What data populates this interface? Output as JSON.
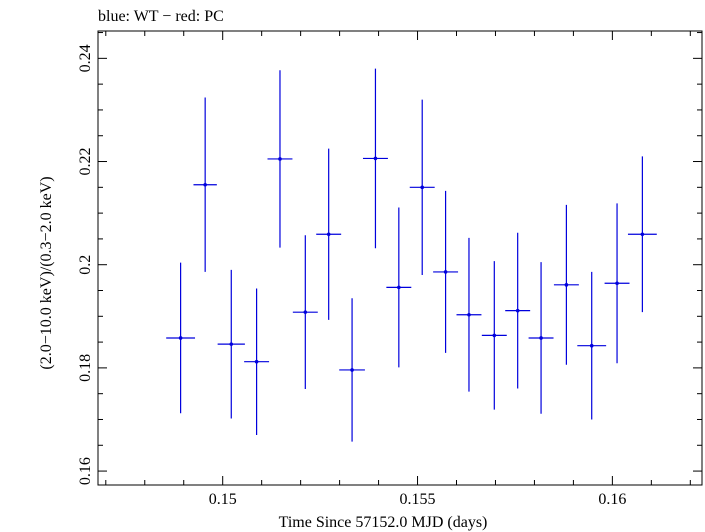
{
  "chart_data": {
    "type": "scatter",
    "title": "blue: WT − red: PC",
    "xlabel": "Time Since 57152.0 MJD (days)",
    "ylabel": "(2.0−10.0 keV)/(0.3−2.0 keV)",
    "xlim": [
      0.1468,
      0.1623
    ],
    "ylim": [
      0.1573,
      0.2453
    ],
    "xticks": [
      {
        "value": 0.15,
        "label": "0.15"
      },
      {
        "value": 0.155,
        "label": "0.155"
      },
      {
        "value": 0.16,
        "label": "0.16"
      }
    ],
    "yticks": [
      {
        "value": 0.16,
        "label": "0.16"
      },
      {
        "value": 0.18,
        "label": "0.18"
      },
      {
        "value": 0.2,
        "label": "0.2"
      },
      {
        "value": 0.22,
        "label": "0.22"
      },
      {
        "value": 0.24,
        "label": "0.24"
      }
    ],
    "x_minor_step": 0.001,
    "y_minor_step": 0.005,
    "grid": false,
    "color": "#0000dd",
    "series": [
      {
        "points": [
          {
            "x": 0.14892,
            "xerr": 0.00037,
            "y": 0.1858,
            "yerr_lo": 0.0146,
            "yerr_hi": 0.0146
          },
          {
            "x": 0.14955,
            "xerr": 0.0003,
            "y": 0.2155,
            "yerr_lo": 0.0169,
            "yerr_hi": 0.0169
          },
          {
            "x": 0.15022,
            "xerr": 0.00035,
            "y": 0.1846,
            "yerr_lo": 0.0144,
            "yerr_hi": 0.0144
          },
          {
            "x": 0.15087,
            "xerr": 0.00032,
            "y": 0.1812,
            "yerr_lo": 0.0142,
            "yerr_hi": 0.0142
          },
          {
            "x": 0.15147,
            "xerr": 0.00032,
            "y": 0.2205,
            "yerr_lo": 0.0172,
            "yerr_hi": 0.0172
          },
          {
            "x": 0.15212,
            "xerr": 0.00032,
            "y": 0.1908,
            "yerr_lo": 0.0149,
            "yerr_hi": 0.0149
          },
          {
            "x": 0.15272,
            "xerr": 0.00032,
            "y": 0.2059,
            "yerr_lo": 0.0166,
            "yerr_hi": 0.0166
          },
          {
            "x": 0.15332,
            "xerr": 0.00033,
            "y": 0.1796,
            "yerr_lo": 0.0139,
            "yerr_hi": 0.0139
          },
          {
            "x": 0.15392,
            "xerr": 0.00032,
            "y": 0.2206,
            "yerr_lo": 0.0174,
            "yerr_hi": 0.0174
          },
          {
            "x": 0.15452,
            "xerr": 0.00032,
            "y": 0.1956,
            "yerr_lo": 0.0155,
            "yerr_hi": 0.0155
          },
          {
            "x": 0.15512,
            "xerr": 0.00032,
            "y": 0.215,
            "yerr_lo": 0.017,
            "yerr_hi": 0.017
          },
          {
            "x": 0.15572,
            "xerr": 0.00032,
            "y": 0.1986,
            "yerr_lo": 0.0157,
            "yerr_hi": 0.0157
          },
          {
            "x": 0.15632,
            "xerr": 0.00032,
            "y": 0.1903,
            "yerr_lo": 0.0149,
            "yerr_hi": 0.0149
          },
          {
            "x": 0.15697,
            "xerr": 0.00032,
            "y": 0.1863,
            "yerr_lo": 0.0144,
            "yerr_hi": 0.0144
          },
          {
            "x": 0.15757,
            "xerr": 0.00032,
            "y": 0.1911,
            "yerr_lo": 0.0151,
            "yerr_hi": 0.0151
          },
          {
            "x": 0.15817,
            "xerr": 0.00032,
            "y": 0.1858,
            "yerr_lo": 0.0147,
            "yerr_hi": 0.0147
          },
          {
            "x": 0.15882,
            "xerr": 0.00032,
            "y": 0.1961,
            "yerr_lo": 0.0155,
            "yerr_hi": 0.0155
          },
          {
            "x": 0.15947,
            "xerr": 0.00037,
            "y": 0.1843,
            "yerr_lo": 0.0143,
            "yerr_hi": 0.0143
          },
          {
            "x": 0.16012,
            "xerr": 0.00032,
            "y": 0.1964,
            "yerr_lo": 0.0155,
            "yerr_hi": 0.0155
          },
          {
            "x": 0.16077,
            "xerr": 0.00037,
            "y": 0.2059,
            "yerr_lo": 0.0151,
            "yerr_hi": 0.0151
          }
        ]
      }
    ]
  }
}
